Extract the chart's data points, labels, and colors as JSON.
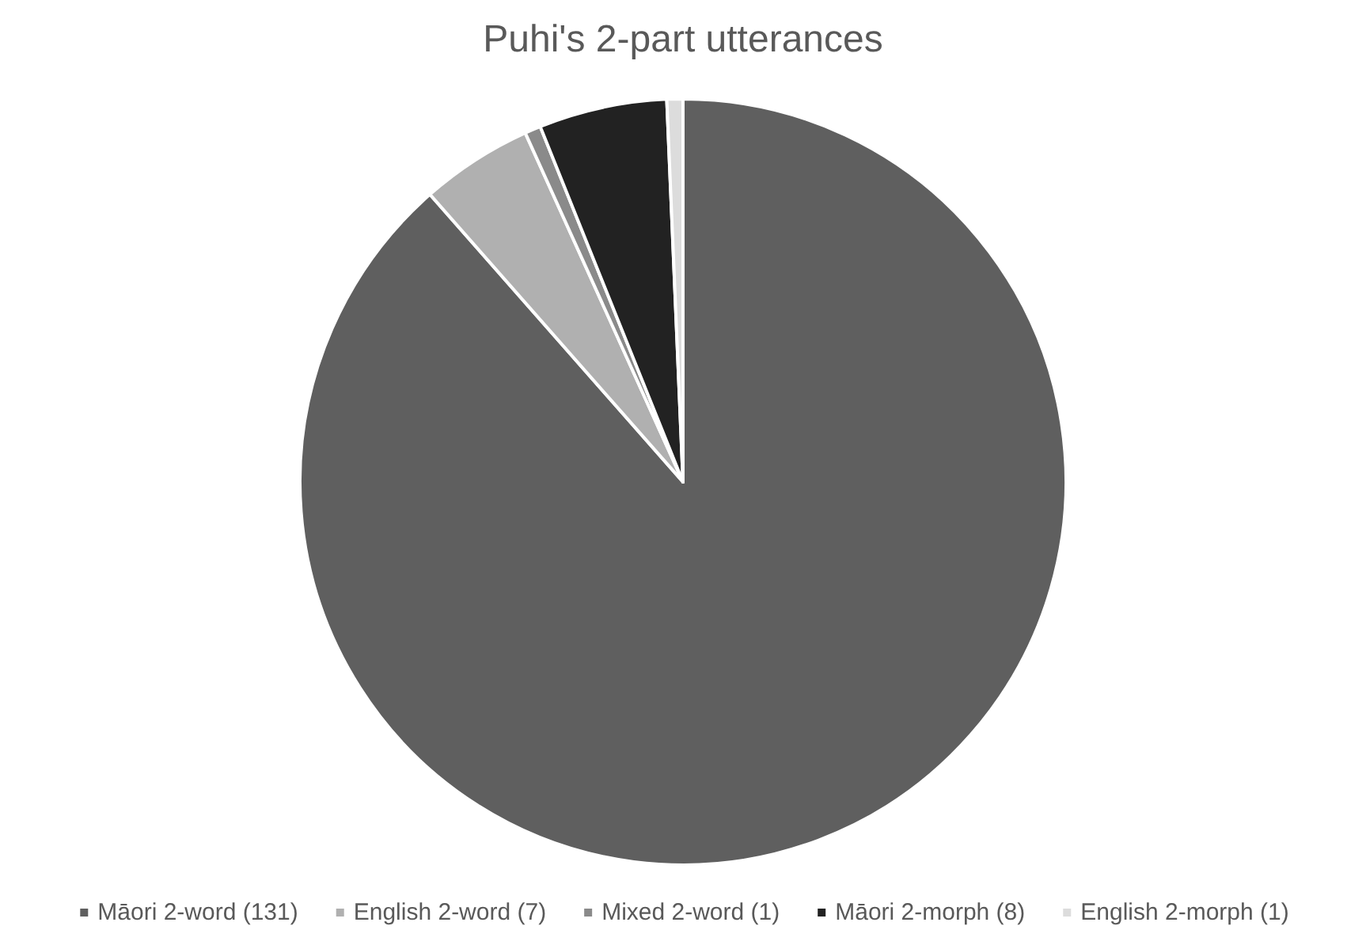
{
  "chart_data": {
    "type": "pie",
    "title": "Puhi's 2-part utterances",
    "categories": [
      "Māori 2-word (131)",
      "English 2-word (7)",
      "Mixed 2-word (1)",
      "Māori 2-morph (8)",
      "English 2-morph (1)"
    ],
    "values": [
      131,
      7,
      1,
      8,
      1
    ],
    "colors": [
      "#5f5f5f",
      "#b0b0b0",
      "#8a8a8a",
      "#222222",
      "#dcdcdc"
    ],
    "legend": "bottom"
  }
}
